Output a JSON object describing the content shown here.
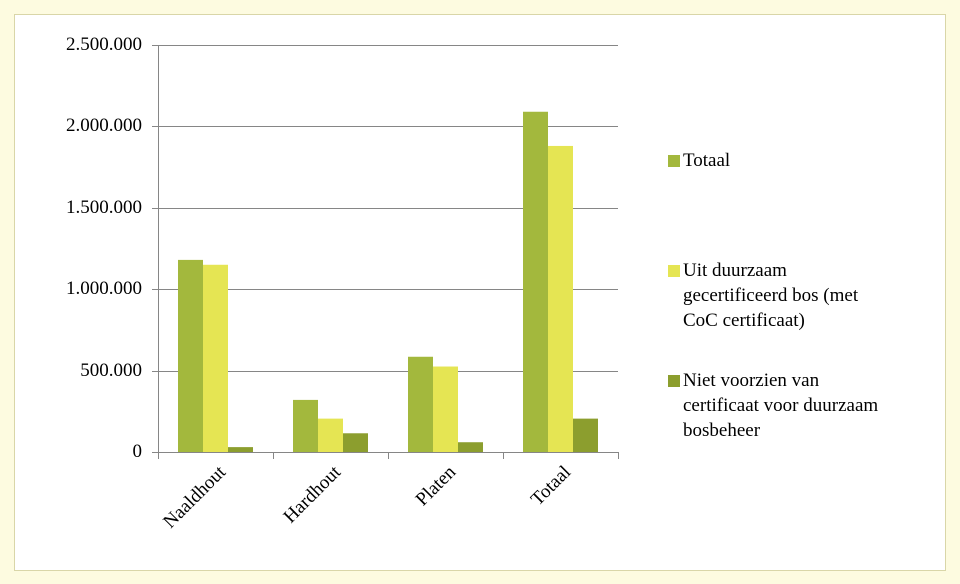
{
  "chart_data": {
    "type": "bar",
    "categories": [
      "Naaldhout",
      "Hardhout",
      "Platen",
      "Totaal"
    ],
    "series": [
      {
        "name": "Totaal",
        "color": "#a3b83d",
        "values": [
          1180000,
          320000,
          585000,
          2090000
        ]
      },
      {
        "name": "Uit duurzaam gecertificeerd bos (met CoC certificaat)",
        "color": "#e5e553",
        "values": [
          1150000,
          205000,
          525000,
          1880000
        ]
      },
      {
        "name": "Niet voorzien van certificaat voor duurzaam bosbeheer",
        "color": "#8c9e2e",
        "values": [
          30000,
          115000,
          60000,
          205000
        ]
      }
    ],
    "ylim": [
      0,
      2500000
    ],
    "yticks": [
      0,
      {
        "value": 500000,
        "label": "500.000"
      },
      {
        "value": 1000000,
        "label": "1.000.000"
      },
      {
        "value": 1500000,
        "label": "1.500.000"
      },
      {
        "value": 2000000,
        "label": "2.000.000"
      },
      {
        "value": 2500000,
        "label": "2.500.000"
      }
    ],
    "grid": true,
    "legend": "right"
  }
}
